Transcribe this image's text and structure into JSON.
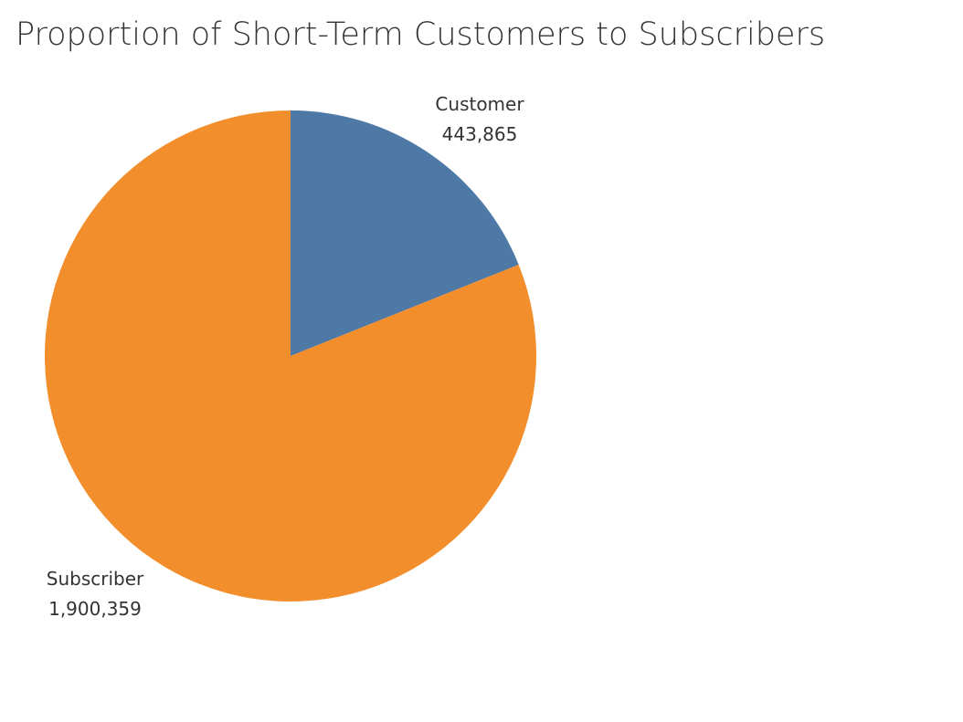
{
  "chart_data": {
    "type": "pie",
    "title": "Proportion of Short-Term Customers to Subscribers",
    "slices": [
      {
        "label": "Customer",
        "value": 443865,
        "value_text": "443,865",
        "color": "#4e79a7"
      },
      {
        "label": "Subscriber",
        "value": 1900359,
        "value_text": "1,900,359",
        "color": "#f28e2b"
      }
    ]
  }
}
